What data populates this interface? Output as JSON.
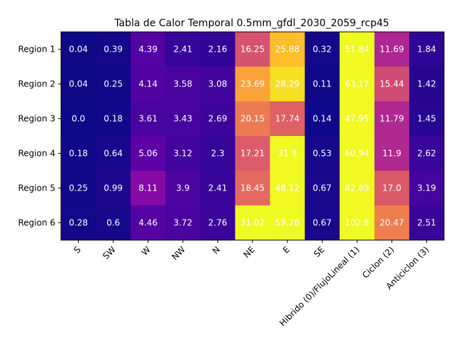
{
  "chart_data": {
    "type": "heatmap",
    "title": "Tabla de Calor Temporal 0.5mm_gfdl_2030_2059_rcp45",
    "colormap": "plasma",
    "x_categories": [
      "S",
      "SW",
      "W",
      "NW",
      "N",
      "NE",
      "E",
      "SE",
      "Hibrido (0)/FlujoLineal (1)",
      "Ciclon (2)",
      "Anticiclon (3)"
    ],
    "y_categories": [
      "Region 1",
      "Region 2",
      "Region 3",
      "Region 4",
      "Region 5",
      "Region 6"
    ],
    "values": [
      [
        0.04,
        0.39,
        4.39,
        2.41,
        2.16,
        16.25,
        25.88,
        0.32,
        51.84,
        11.69,
        1.84
      ],
      [
        0.04,
        0.25,
        4.14,
        3.58,
        3.08,
        23.69,
        28.29,
        0.11,
        63.17,
        15.44,
        1.42
      ],
      [
        0.0,
        0.18,
        3.61,
        3.43,
        2.69,
        20.15,
        17.74,
        0.14,
        47.95,
        11.79,
        1.45
      ],
      [
        0.18,
        0.64,
        5.06,
        3.12,
        2.3,
        17.21,
        31.9,
        0.53,
        60.94,
        11.9,
        2.62
      ],
      [
        0.25,
        0.99,
        8.11,
        3.9,
        2.41,
        18.45,
        48.12,
        0.67,
        82.89,
        17.0,
        3.19
      ],
      [
        0.28,
        0.6,
        4.46,
        3.72,
        2.76,
        31.02,
        59.28,
        0.67,
        102.8,
        20.47,
        2.51
      ]
    ],
    "value_labels": [
      [
        "0.04",
        "0.39",
        "4.39",
        "2.41",
        "2.16",
        "16.25",
        "25.88",
        "0.32",
        "51.84",
        "11.69",
        "1.84"
      ],
      [
        "0.04",
        "0.25",
        "4.14",
        "3.58",
        "3.08",
        "23.69",
        "28.29",
        "0.11",
        "63.17",
        "15.44",
        "1.42"
      ],
      [
        "0.0",
        "0.18",
        "3.61",
        "3.43",
        "2.69",
        "20.15",
        "17.74",
        "0.14",
        "47.95",
        "11.79",
        "1.45"
      ],
      [
        "0.18",
        "0.64",
        "5.06",
        "3.12",
        "2.3",
        "17.21",
        "31.9",
        "0.53",
        "60.94",
        "11.9",
        "2.62"
      ],
      [
        "0.25",
        "0.99",
        "8.11",
        "3.9",
        "2.41",
        "18.45",
        "48.12",
        "0.67",
        "82.89",
        "17.0",
        "3.19"
      ],
      [
        "0.28",
        "0.6",
        "4.46",
        "3.72",
        "2.76",
        "31.02",
        "59.28",
        "0.67",
        "102.8",
        "20.47",
        "2.51"
      ]
    ],
    "color_range": [
      0,
      30
    ]
  }
}
